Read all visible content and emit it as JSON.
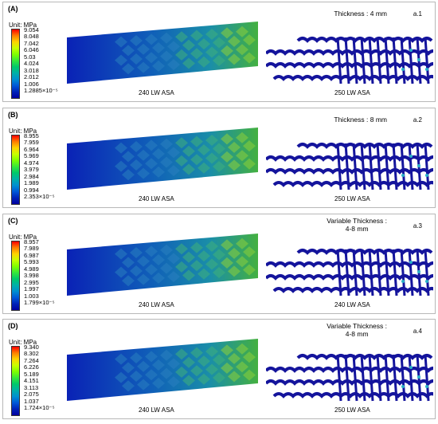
{
  "unit_label": "Unit: MPa",
  "colors": {
    "legend": [
      "#ff0000",
      "#ff7f00",
      "#ffd400",
      "#c8ff00",
      "#7fff00",
      "#36e83a",
      "#00c96a",
      "#00b0a8",
      "#0090d0",
      "#0058d8",
      "#0022b8",
      "#0000a0"
    ],
    "beam_root": "#0a22b6",
    "beam_mid": "#1a8ea8",
    "beam_hot": "#44b040",
    "lattice": "#14149c"
  },
  "panels": [
    {
      "label": "(A)",
      "legend_values": [
        "9.054",
        "8.048",
        "7.042",
        "6.046",
        "5.03",
        "4.024",
        "3.018",
        "2.012",
        "1.006",
        "1.2885×10⁻⁵"
      ],
      "thickness_lines": [
        "Thickness : 4 mm"
      ],
      "tag": "a.1",
      "caption_left": "240 LW ASA",
      "caption_right": "250 LW ASA"
    },
    {
      "label": "(B)",
      "legend_values": [
        "8.955",
        "7.959",
        "6.964",
        "5.969",
        "4.974",
        "3.979",
        "2.984",
        "1.989",
        "0.994",
        "2.353×10⁻⁵"
      ],
      "thickness_lines": [
        "Thickness : 8 mm"
      ],
      "tag": "a.2",
      "caption_left": "240 LW ASA",
      "caption_right": "250 LW ASA"
    },
    {
      "label": "(C)",
      "legend_values": [
        "8.957",
        "7.989",
        "6.987",
        "5.993",
        "4.989",
        "3.998",
        "2.995",
        "1.997",
        "1.003",
        "1.799×10⁻⁵"
      ],
      "thickness_lines": [
        "Variable Thickness :",
        "4-8 mm"
      ],
      "tag": "a.3",
      "caption_left": "240 LW ASA",
      "caption_right": "240 LW ASA"
    },
    {
      "label": "(D)",
      "legend_values": [
        "9.340",
        "8.302",
        "7.264",
        "6.226",
        "5.189",
        "4.151",
        "3.113",
        "2.075",
        "1.037",
        "1.724×10⁻⁵"
      ],
      "thickness_lines": [
        "Variable Thickness :",
        "4-8 mm"
      ],
      "tag": "a.4",
      "caption_left": "240 LW ASA",
      "caption_right": "250 LW ASA"
    }
  ]
}
